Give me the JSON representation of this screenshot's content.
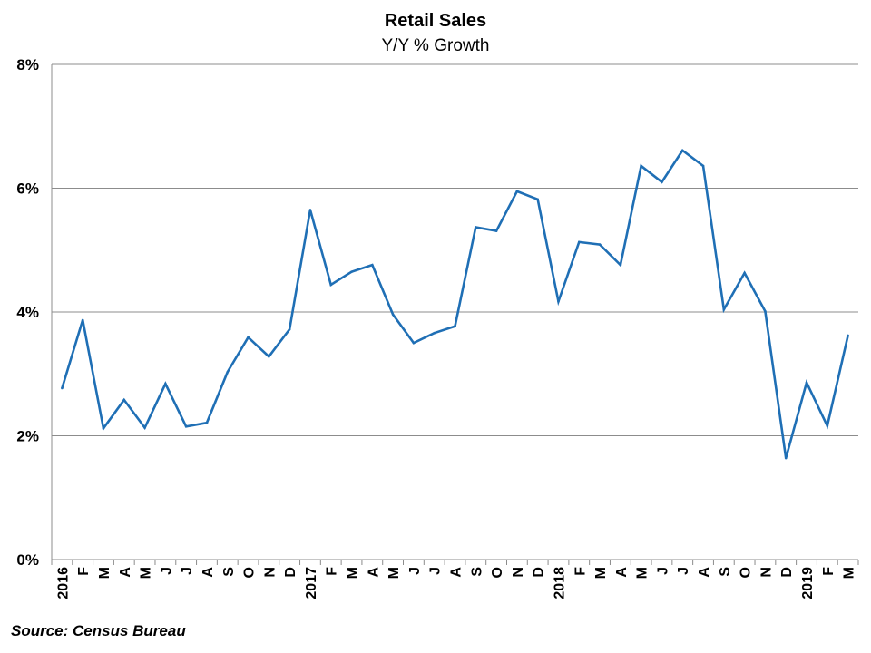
{
  "chart_data": {
    "type": "line",
    "title": "Retail Sales",
    "subtitle": "Y/Y % Growth",
    "xlabel": "",
    "ylabel": "",
    "ylim": [
      0,
      8
    ],
    "yticks": [
      "0%",
      "2%",
      "4%",
      "6%",
      "8%"
    ],
    "grid": "horizontal",
    "line_color": "#1f6fb5",
    "categories": [
      "2016",
      "F",
      "M",
      "A",
      "M",
      "J",
      "J",
      "A",
      "S",
      "O",
      "N",
      "D",
      "2017",
      "F",
      "M",
      "A",
      "M",
      "J",
      "J",
      "A",
      "S",
      "O",
      "N",
      "D",
      "2018",
      "F",
      "M",
      "A",
      "M",
      "J",
      "J",
      "A",
      "S",
      "O",
      "N",
      "D",
      "2019",
      "F",
      "M"
    ],
    "series": [
      {
        "values": [
          2.77,
          3.87,
          2.12,
          2.58,
          2.13,
          2.84,
          2.15,
          2.21,
          3.03,
          3.59,
          3.28,
          3.72,
          5.65,
          4.44,
          4.65,
          4.76,
          3.96,
          3.5,
          3.66,
          3.77,
          5.37,
          5.31,
          5.95,
          5.82,
          4.17,
          5.13,
          5.09,
          4.76,
          6.36,
          6.1,
          6.61,
          6.36,
          4.04,
          4.63,
          4.01,
          1.64,
          2.86,
          2.16,
          3.62
        ]
      }
    ]
  },
  "source": "Source: Census Bureau"
}
